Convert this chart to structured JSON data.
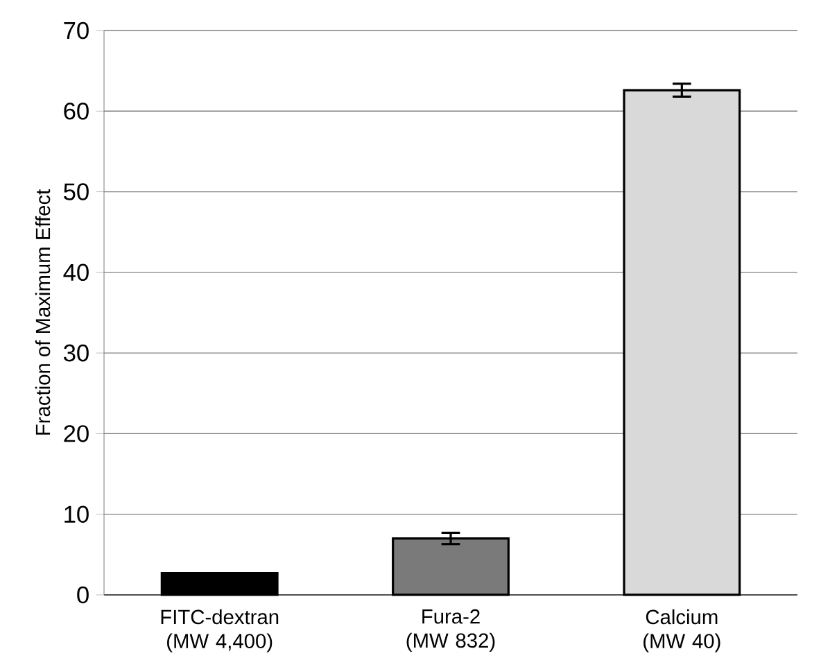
{
  "chart_data": {
    "type": "bar",
    "ylabel": "Fraction of Maximum Effect",
    "categories": [
      "FITC-dextran (MW 4,400)",
      "Fura-2 (MW 832)",
      "Calcium (MW 40)"
    ],
    "values": [
      2.7,
      7.0,
      62.6
    ],
    "errors": [
      null,
      0.7,
      0.8
    ],
    "colors": [
      "#000000",
      "#7a7a7a",
      "#d9d9d9"
    ],
    "ylim": [
      0,
      70
    ],
    "yticks": [
      0,
      10,
      20,
      30,
      40,
      50,
      60,
      70
    ],
    "grid": "y"
  }
}
